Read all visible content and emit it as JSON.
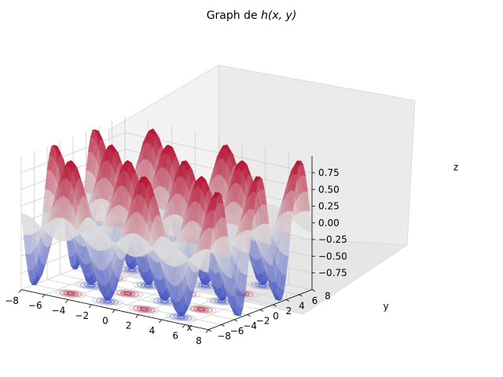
{
  "chart_data": {
    "type": "surface3d",
    "title": "Graph de ",
    "title_math": "h(x, y)",
    "function": "sin(x)·cos(y)",
    "xlabel": "x",
    "ylabel": "y",
    "zlabel": "z",
    "xlim": [
      -8,
      8
    ],
    "ylim": [
      -8,
      8
    ],
    "zlim": [
      -1,
      1
    ],
    "xticks": [
      "−8",
      "−6",
      "−4",
      "−2",
      "0",
      "2",
      "4",
      "6",
      "8"
    ],
    "yticks": [
      "−8",
      "−6",
      "−4",
      "−2",
      "0",
      "2",
      "4",
      "6",
      "8"
    ],
    "zticks": [
      "−0.75",
      "−0.50",
      "−0.25",
      "0.00",
      "0.25",
      "0.50",
      "0.75"
    ],
    "colormap": "coolwarm",
    "colors": {
      "low": "#3b4cc0",
      "mid": "#dddddd",
      "high": "#b40426"
    },
    "grid": true,
    "projected_contours": "xy-plane"
  }
}
